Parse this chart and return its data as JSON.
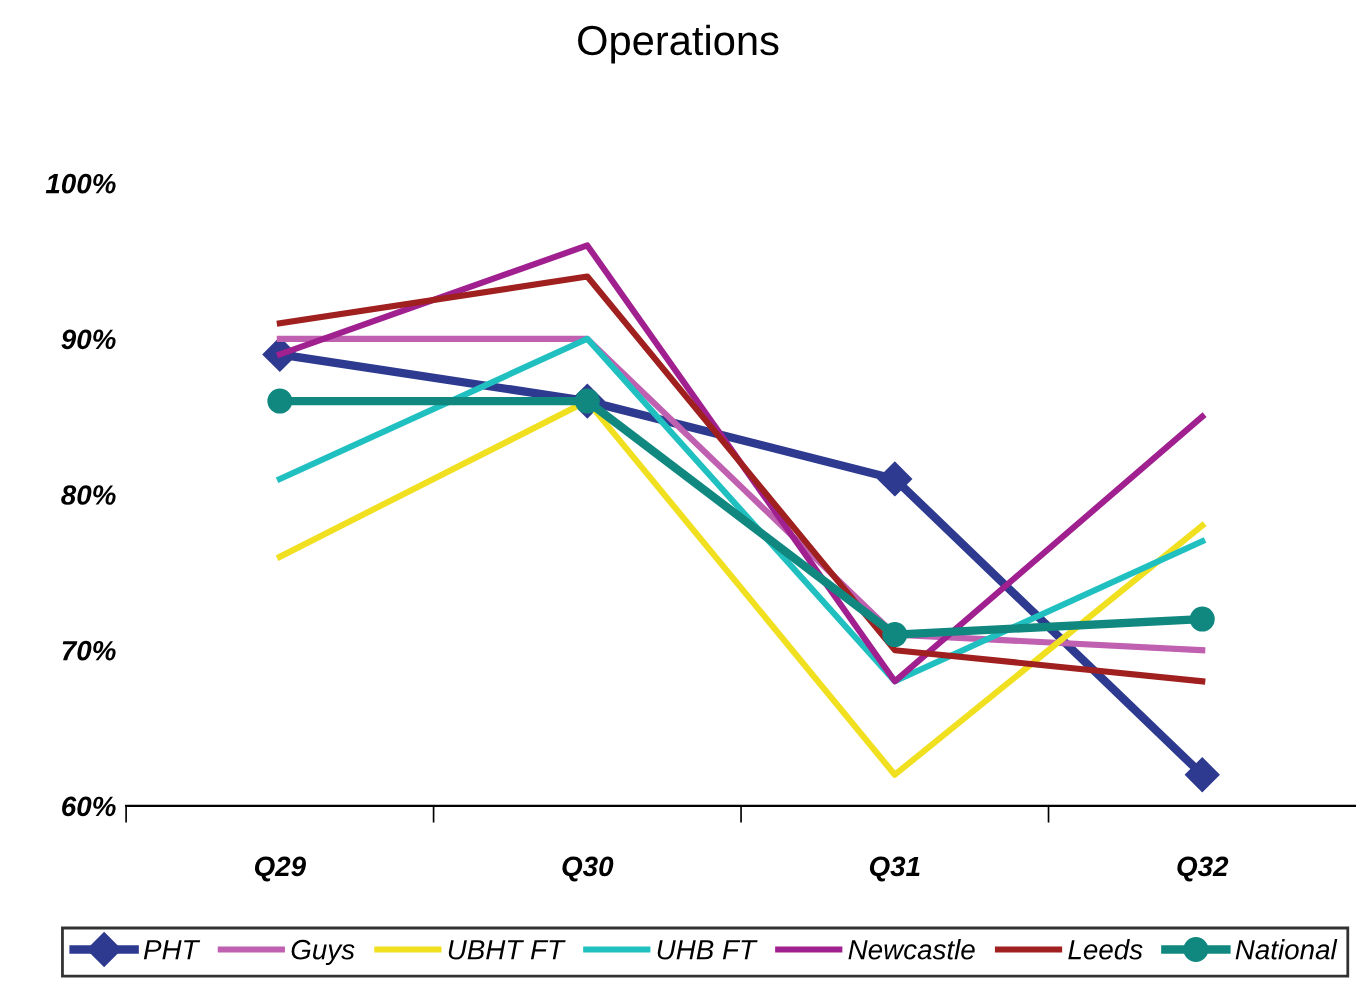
{
  "chart_data": {
    "type": "line",
    "title": "Operations",
    "categories": [
      "Q29",
      "Q30",
      "Q31",
      "Q32"
    ],
    "series": [
      {
        "name": "PHT",
        "color": "#2e3a8f",
        "values": [
          89,
          86,
          81,
          62
        ],
        "marker": "diamond"
      },
      {
        "name": "Guys",
        "color": "#c060b0",
        "values": [
          90,
          90,
          71,
          70
        ],
        "marker": "none"
      },
      {
        "name": "UBHT FT",
        "color": "#f0e020",
        "values": [
          76,
          86,
          62,
          78
        ],
        "marker": "none"
      },
      {
        "name": "UHB FT",
        "color": "#20c0c0",
        "values": [
          81,
          90,
          68,
          77
        ],
        "marker": "none"
      },
      {
        "name": "Newcastle",
        "color": "#a02090",
        "values": [
          89,
          96,
          68,
          85
        ],
        "marker": "none"
      },
      {
        "name": "Leeds",
        "color": "#a02020",
        "values": [
          91,
          94,
          70,
          68
        ],
        "marker": "none"
      },
      {
        "name": "National",
        "color": "#108880",
        "values": [
          86,
          86,
          71,
          72
        ],
        "marker": "circle"
      }
    ],
    "ylim": [
      60,
      100
    ],
    "yticks": [
      {
        "value": 60,
        "label": "60%"
      },
      {
        "value": 70,
        "label": "70%"
      },
      {
        "value": 80,
        "label": "80%"
      },
      {
        "value": 90,
        "label": "90%"
      },
      {
        "value": 100,
        "label": "100%"
      }
    ],
    "grid": false,
    "legend": "bottom",
    "line_style": "solid"
  }
}
